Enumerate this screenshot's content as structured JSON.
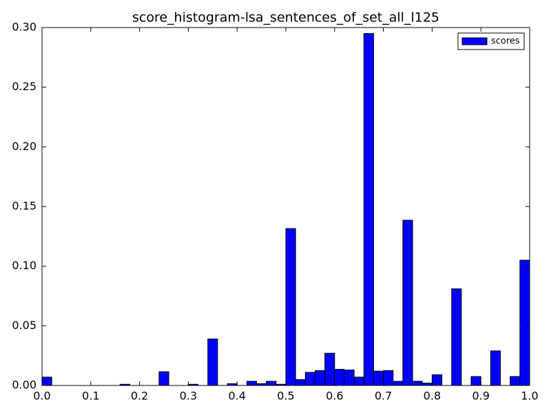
{
  "chart_data": {
    "type": "histogram",
    "title": "score_histogram-lsa_sentences_of_set_all_l125",
    "bins": [
      0,
      0.02,
      0.04,
      0.06,
      0.08,
      0.1,
      0.12,
      0.14,
      0.16,
      0.18,
      0.2,
      0.22,
      0.24,
      0.26,
      0.28,
      0.3,
      0.32,
      0.34,
      0.36,
      0.38,
      0.4,
      0.42,
      0.44,
      0.46,
      0.48,
      0.5,
      0.52,
      0.54,
      0.56,
      0.58,
      0.6,
      0.62,
      0.64,
      0.66,
      0.68,
      0.7,
      0.72,
      0.74,
      0.76,
      0.78,
      0.8,
      0.82,
      0.84,
      0.86,
      0.88,
      0.9,
      0.92,
      0.94,
      0.96,
      0.98,
      1.0
    ],
    "series": [
      {
        "name": "scores",
        "color": "#0000ff",
        "values": [
          0.007,
          0,
          0,
          0,
          0,
          0,
          0,
          0,
          0.001,
          0,
          0,
          0,
          0.0115,
          0,
          0,
          0.001,
          0,
          0.039,
          0,
          0.0015,
          0,
          0.0035,
          0.0015,
          0.0035,
          0.001,
          0.1315,
          0.005,
          0.011,
          0.0125,
          0.027,
          0.0135,
          0.013,
          0.007,
          0.295,
          0.012,
          0.0125,
          0.0035,
          0.1385,
          0.0035,
          0.002,
          0.009,
          0,
          0.081,
          0,
          0.0075,
          0,
          0.029,
          0,
          0.0075,
          0.105
        ]
      }
    ],
    "xlim": [
      0,
      1
    ],
    "ylim": [
      0,
      0.3
    ],
    "xticks": [
      {
        "value": 0,
        "label": "0.0"
      },
      0.1,
      0.2,
      0.3,
      0.4,
      0.5,
      0.6,
      0.7,
      0.8,
      0.9,
      {
        "value": 1,
        "label": "1.0"
      }
    ],
    "yticks": [
      {
        "value": 0,
        "label": "0.00"
      },
      {
        "value": 0.05,
        "label": "0.05"
      },
      {
        "value": 0.1,
        "label": "0.10"
      },
      {
        "value": 0.15,
        "label": "0.15"
      },
      {
        "value": 0.2,
        "label": "0.20"
      },
      {
        "value": 0.25,
        "label": "0.25"
      },
      {
        "value": 0.3,
        "label": "0.30"
      }
    ],
    "legend": "upper right",
    "grid": false
  }
}
